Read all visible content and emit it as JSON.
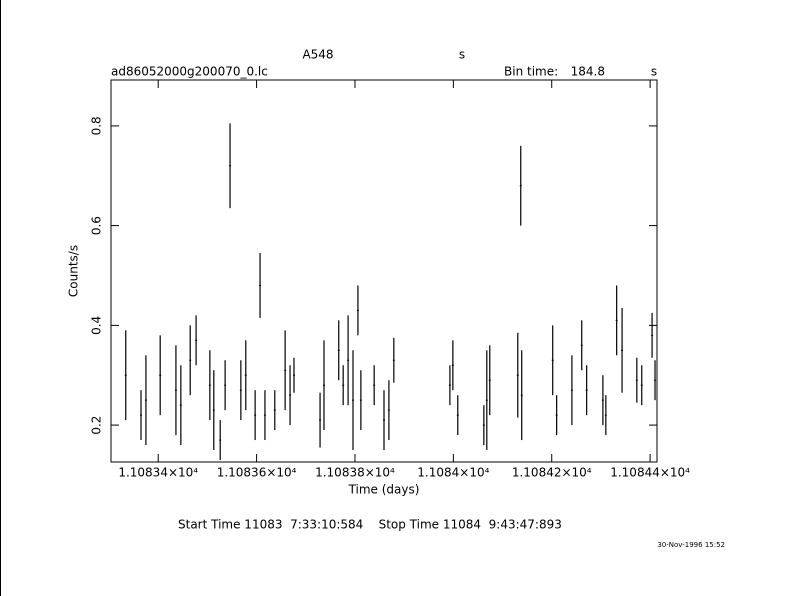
{
  "chart_data": {
    "type": "errorbar",
    "title": "A548",
    "title_unit": "s",
    "file": "ad86052000g200070_0.lc",
    "bin_time_label": "Bin time:",
    "bin_time": "184.8",
    "bin_time_unit": "s",
    "xlabel": "Time (days)",
    "ylabel": "Counts/s",
    "start_stop": "Start Time 11083  7:33:10:584    Stop Time 11084  9:43:47:893",
    "timestamp": "30-Nov-1996 15:52",
    "color": "#000000",
    "xlim": [
      11083.304,
      11084.414
    ],
    "ylim": [
      0.126,
      0.892
    ],
    "xticks": [
      {
        "value": 11083.4,
        "label": "1.10834×10⁴"
      },
      {
        "value": 11083.6,
        "label": "1.10836×10⁴"
      },
      {
        "value": 11083.8,
        "label": "1.10838×10⁴"
      },
      {
        "value": 11084.0,
        "label": "1.1084×10⁴"
      },
      {
        "value": 11084.2,
        "label": "1.10842×10⁴"
      },
      {
        "value": 11084.4,
        "label": "1.10844×10⁴"
      }
    ],
    "yticks": [
      0.2,
      0.4,
      0.6,
      0.8
    ],
    "x": [
      11083.334,
      11083.365,
      11083.375,
      11083.404,
      11083.436,
      11083.446,
      11083.465,
      11083.477,
      11083.505,
      11083.513,
      11083.526,
      11083.536,
      11083.546,
      11083.568,
      11083.578,
      11083.597,
      11083.607,
      11083.617,
      11083.637,
      11083.658,
      11083.668,
      11083.676,
      11083.729,
      11083.737,
      11083.767,
      11083.776,
      11083.786,
      11083.796,
      11083.806,
      11083.812,
      11083.839,
      11083.859,
      11083.869,
      11083.879,
      11083.993,
      11083.999,
      11084.009,
      11084.062,
      11084.068,
      11084.074,
      11084.131,
      11084.137,
      11084.139,
      11084.202,
      11084.21,
      11084.241,
      11084.261,
      11084.271,
      11084.304,
      11084.31,
      11084.332,
      11084.343,
      11084.373,
      11084.383,
      11084.404,
      11084.41
    ],
    "values": [
      0.3,
      0.22,
      0.25,
      0.3,
      0.27,
      0.24,
      0.33,
      0.37,
      0.28,
      0.23,
      0.17,
      0.28,
      0.72,
      0.27,
      0.3,
      0.22,
      0.48,
      0.22,
      0.23,
      0.31,
      0.26,
      0.3,
      0.21,
      0.28,
      0.35,
      0.28,
      0.33,
      0.25,
      0.43,
      0.25,
      0.28,
      0.21,
      0.23,
      0.33,
      0.28,
      0.32,
      0.22,
      0.2,
      0.25,
      0.29,
      0.3,
      0.68,
      0.26,
      0.33,
      0.22,
      0.27,
      0.36,
      0.27,
      0.25,
      0.22,
      0.41,
      0.35,
      0.29,
      0.28,
      0.38,
      0.29
    ],
    "errors": [
      0.09,
      0.05,
      0.09,
      0.08,
      0.09,
      0.08,
      0.07,
      0.05,
      0.07,
      0.08,
      0.04,
      0.05,
      0.085,
      0.06,
      0.07,
      0.05,
      0.065,
      0.05,
      0.04,
      0.08,
      0.06,
      0.035,
      0.055,
      0.09,
      0.06,
      0.04,
      0.09,
      0.1,
      0.05,
      0.06,
      0.04,
      0.06,
      0.06,
      0.045,
      0.04,
      0.05,
      0.04,
      0.04,
      0.1,
      0.07,
      0.085,
      0.08,
      0.09,
      0.07,
      0.04,
      0.07,
      0.05,
      0.05,
      0.05,
      0.04,
      0.07,
      0.085,
      0.045,
      0.04,
      0.045,
      0.04
    ]
  }
}
